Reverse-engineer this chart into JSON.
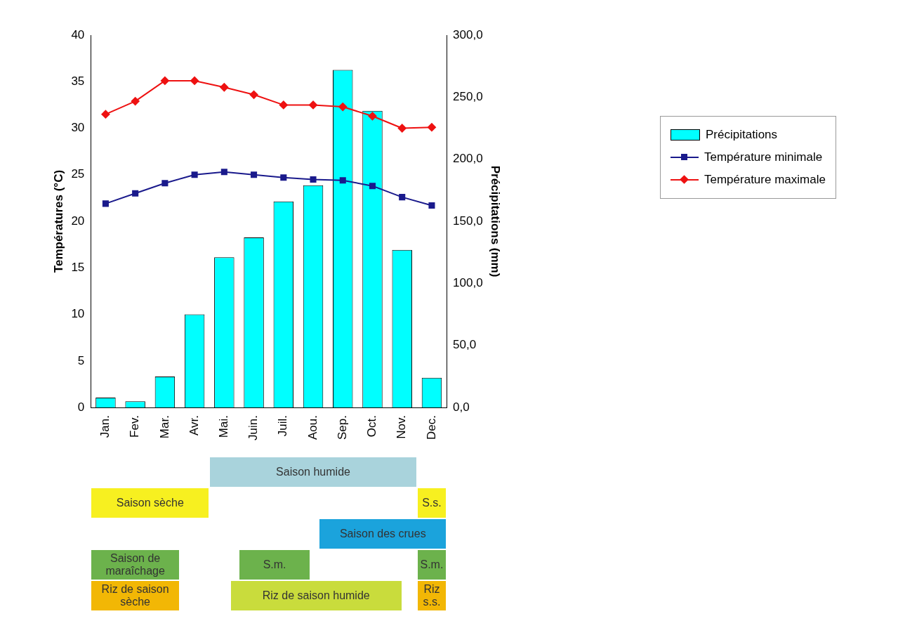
{
  "chart_data": [
    {
      "type": "bar",
      "categories": [
        "Jan.",
        "Fev.",
        "Mar.",
        "Avr.",
        "Mai.",
        "Juin.",
        "Juil.",
        "Aou.",
        "Sep.",
        "Oct.",
        "Nov.",
        "Dec."
      ],
      "series": [
        {
          "name": "Précipitations",
          "type": "bar",
          "axis": "y2",
          "color": "#00ffff",
          "values": [
            8,
            5,
            25,
            75,
            121,
            137,
            166,
            179,
            272,
            239,
            127,
            24
          ]
        },
        {
          "name": "Température minimale",
          "type": "line",
          "color": "#1a1a8c",
          "marker": "square",
          "values": [
            21.9,
            23.0,
            24.1,
            25.0,
            25.3,
            25.0,
            24.7,
            24.5,
            24.4,
            23.8,
            22.6,
            21.7
          ]
        },
        {
          "name": "Température maximale",
          "type": "line",
          "color": "#ee1111",
          "marker": "diamond",
          "values": [
            31.5,
            32.9,
            35.1,
            35.1,
            34.4,
            33.6,
            32.5,
            32.5,
            32.3,
            31.3,
            30.0,
            30.1
          ]
        }
      ],
      "ylabel": "Températures (°C)",
      "y2label": "Précipitations (mm)",
      "ylim": [
        0,
        40
      ],
      "yticks": [
        0,
        5,
        10,
        15,
        20,
        25,
        30,
        35,
        40
      ],
      "y2lim": [
        0,
        300
      ],
      "y2ticks": [
        {
          "value": 0,
          "label": "0,0"
        },
        {
          "value": 50,
          "label": "50,0"
        },
        {
          "value": 100,
          "label": "100,0"
        },
        {
          "value": 150,
          "label": "150,0"
        },
        {
          "value": 200,
          "label": "200,0"
        },
        {
          "value": 250,
          "label": "250,0"
        },
        {
          "value": 300,
          "label": "300,0"
        }
      ],
      "legend": "right",
      "grid": false
    },
    {
      "type": "other",
      "annotations": [
        "Saison humide",
        "Saison sèche",
        "S.s.",
        "Saison des crues",
        "Saison de maraîchage",
        "S.m.",
        "S.m.",
        "Riz de saison sèche",
        "Riz de saison humide",
        "Riz s.s."
      ]
    }
  ]
}
